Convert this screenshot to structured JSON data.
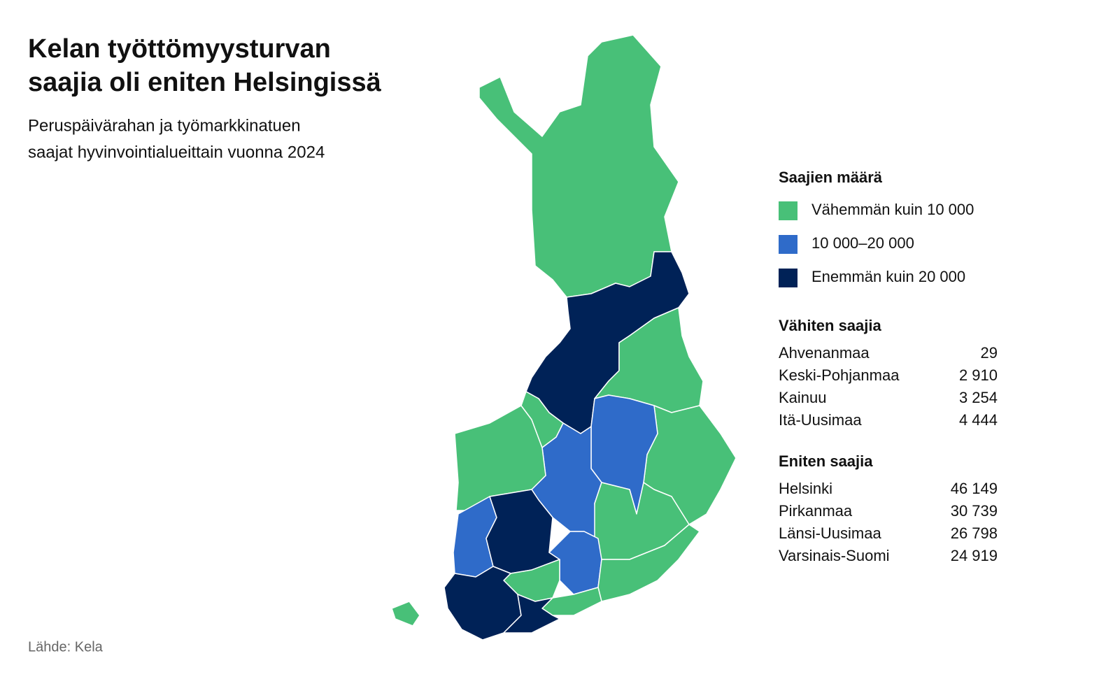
{
  "header": {
    "title": [
      "Kelan työttömyysturvan",
      "saajia oli eniten Helsingissä"
    ],
    "subtitle": [
      "Peruspäivärahan ja työmarkkinatuen",
      "saajat hyvinvointialueittain vuonna 2024"
    ]
  },
  "legend": {
    "title": "Saajien määrä",
    "items": [
      {
        "label": "Vähemmän kuin 10 000",
        "color": "#48c078"
      },
      {
        "label": "10 000–20 000",
        "color": "#2f6bc9"
      },
      {
        "label": "Enemmän kuin 20 000",
        "color": "#002257"
      }
    ]
  },
  "lists": [
    {
      "title": "Vähiten saajia",
      "rows": [
        [
          "Ahvenanmaa",
          "29"
        ],
        [
          "Keski-Pohjanmaa",
          "2 910"
        ],
        [
          "Kainuu",
          "3 254"
        ],
        [
          "Itä-Uusimaa",
          "4 444"
        ]
      ]
    },
    {
      "title": "Eniten saajia",
      "rows": [
        [
          "Helsinki",
          "46 149"
        ],
        [
          "Pirkanmaa",
          "30 739"
        ],
        [
          "Länsi-Uusimaa",
          "26 798"
        ],
        [
          "Varsinais-Suomi",
          "24 919"
        ]
      ]
    }
  ],
  "source": "Lähde: Kela"
}
